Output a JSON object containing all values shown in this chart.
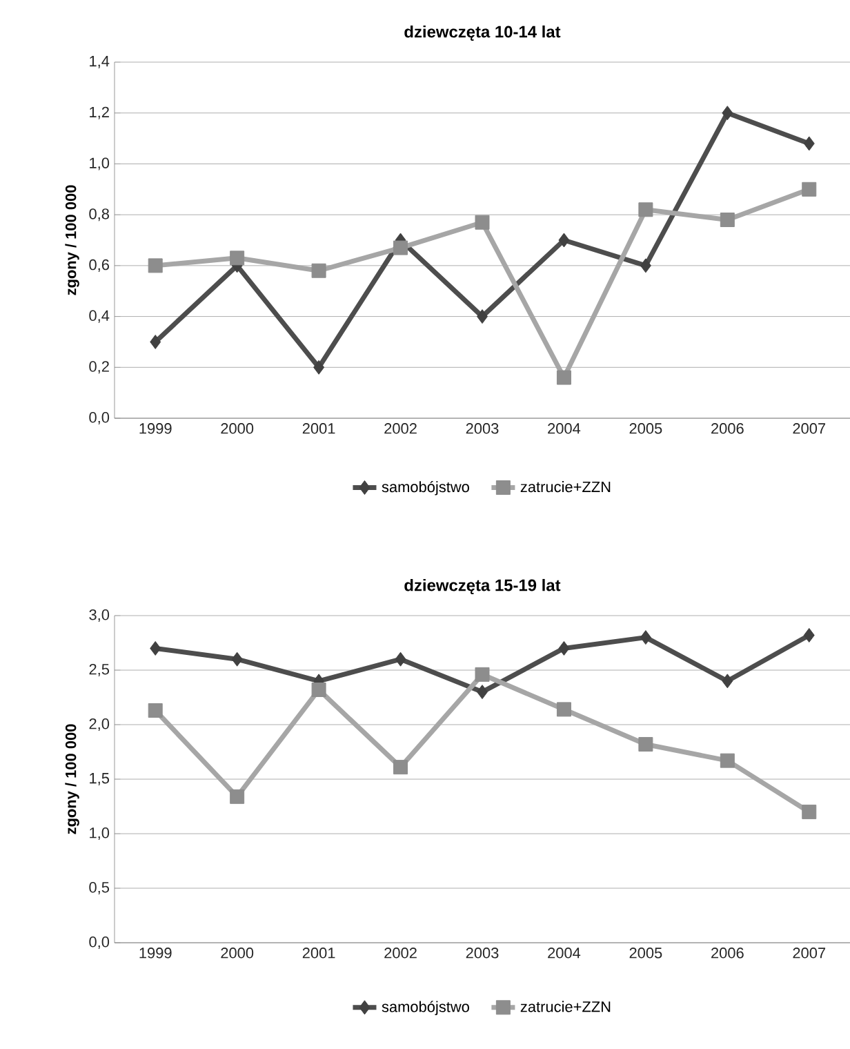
{
  "chart_data": [
    {
      "type": "line",
      "title": "dziewczęta 10-14 lat",
      "ylabel": "zgony / 100 000",
      "categories": [
        "1999",
        "2000",
        "2001",
        "2002",
        "2003",
        "2004",
        "2005",
        "2006",
        "2007"
      ],
      "series": [
        {
          "name": "samobójstwo",
          "color": "#4d4d4d",
          "marker": "diamond",
          "values": [
            0.3,
            0.6,
            0.2,
            0.7,
            0.4,
            0.7,
            0.6,
            1.2,
            1.08
          ]
        },
        {
          "name": "zatrucie+ZZN",
          "color": "#a6a6a6",
          "marker": "square",
          "values": [
            0.6,
            0.63,
            0.58,
            0.67,
            0.77,
            0.16,
            0.82,
            0.78,
            0.9
          ]
        }
      ],
      "ylim": [
        0,
        1.4
      ],
      "yticks": [
        {
          "value": 0,
          "label": "0,0"
        },
        {
          "value": 0.2,
          "label": "0,2"
        },
        {
          "value": 0.4,
          "label": "0,4"
        },
        {
          "value": 0.6,
          "label": "0,6"
        },
        {
          "value": 0.8,
          "label": "0,8"
        },
        {
          "value": 1.0,
          "label": "1,0"
        },
        {
          "value": 1.2,
          "label": "1,2"
        },
        {
          "value": 1.4,
          "label": "1,4"
        }
      ],
      "grid": "y",
      "legend": "bottom"
    },
    {
      "type": "line",
      "title": "dziewczęta 15-19 lat",
      "ylabel": "zgony / 100 000",
      "categories": [
        "1999",
        "2000",
        "2001",
        "2002",
        "2003",
        "2004",
        "2005",
        "2006",
        "2007"
      ],
      "series": [
        {
          "name": "samobójstwo",
          "color": "#4d4d4d",
          "marker": "diamond",
          "values": [
            2.7,
            2.6,
            2.4,
            2.6,
            2.3,
            2.7,
            2.8,
            2.4,
            2.82
          ]
        },
        {
          "name": "zatrucie+ZZN",
          "color": "#a6a6a6",
          "marker": "square",
          "values": [
            2.13,
            1.34,
            2.32,
            1.61,
            2.46,
            2.14,
            1.82,
            1.67,
            1.2
          ]
        }
      ],
      "ylim": [
        0,
        3
      ],
      "yticks": [
        {
          "value": 0,
          "label": "0,0"
        },
        {
          "value": 0.5,
          "label": "0,5"
        },
        {
          "value": 1.0,
          "label": "1,0"
        },
        {
          "value": 1.5,
          "label": "1,5"
        },
        {
          "value": 2.0,
          "label": "2,0"
        },
        {
          "value": 2.5,
          "label": "2,5"
        },
        {
          "value": 3.0,
          "label": "3,0"
        }
      ],
      "grid": "y",
      "legend": "bottom"
    }
  ]
}
